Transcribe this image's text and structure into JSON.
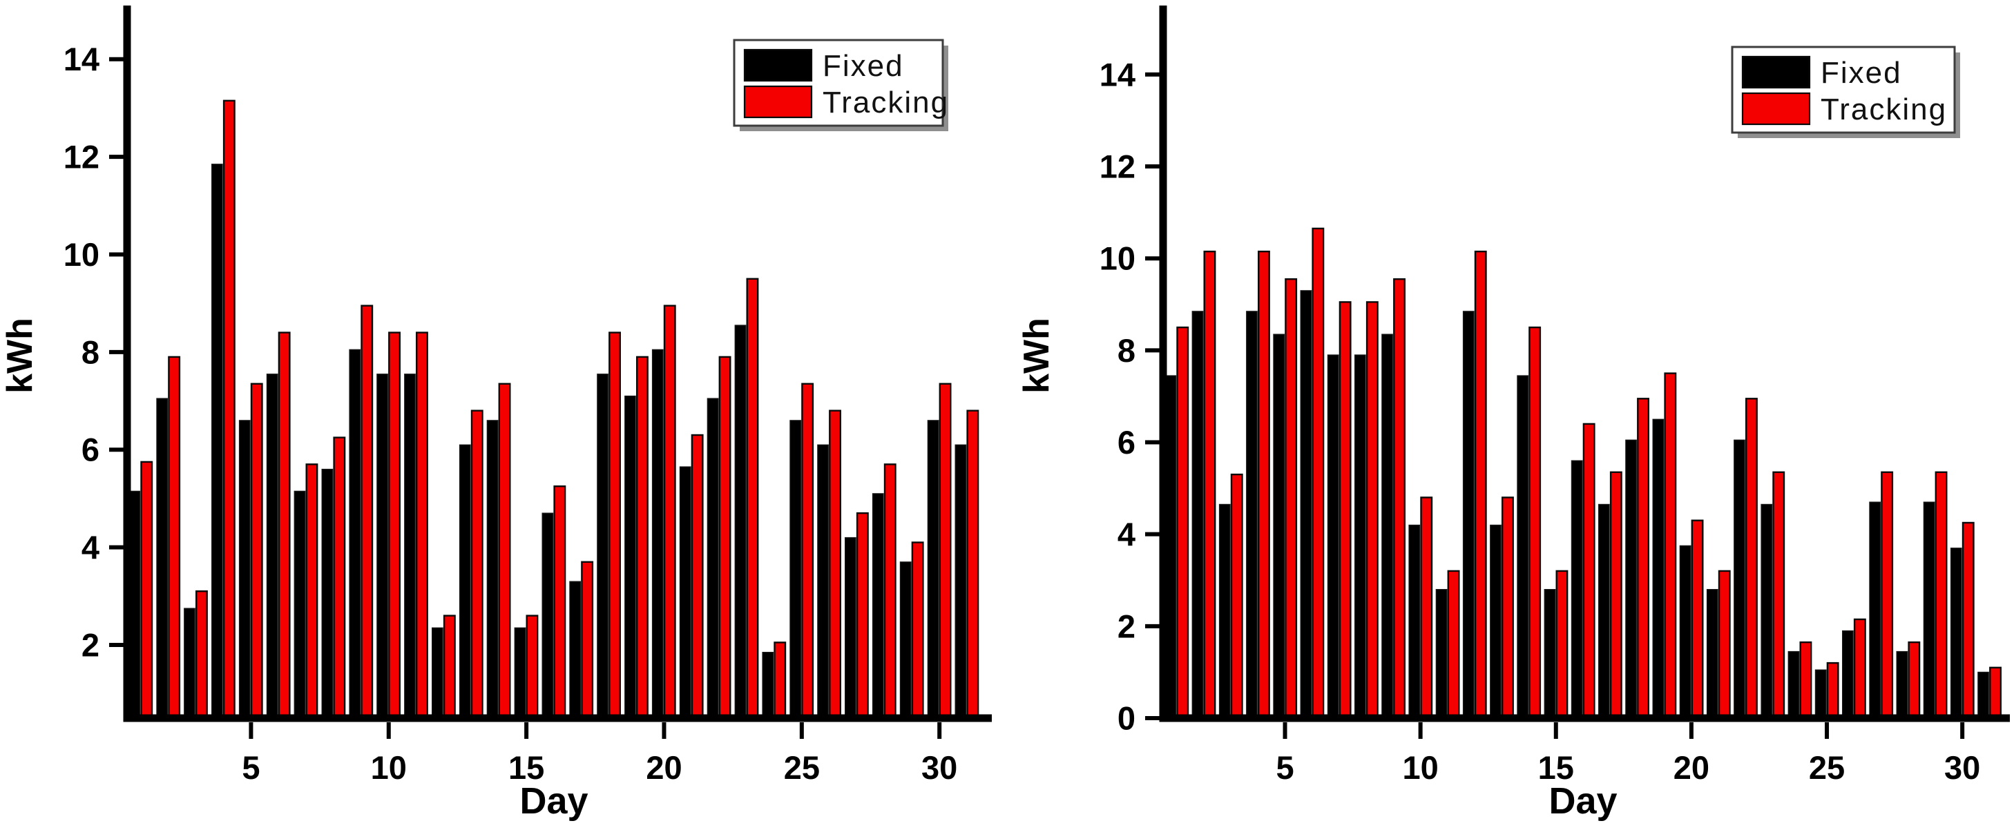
{
  "page": {
    "background": "#ffffff",
    "description": "Two grouped bar charts of daily solar energy yield, fixed vs tracking panels"
  },
  "legend": {
    "items": [
      {
        "label": "Fixed",
        "color": "#000000"
      },
      {
        "label": "Tracking",
        "color": "#f40000"
      }
    ]
  },
  "chart_data": [
    {
      "id": "left-chart",
      "type": "bar",
      "title": "",
      "xlabel": "Day",
      "ylabel": "kWh",
      "categories": [
        1,
        2,
        3,
        4,
        5,
        6,
        7,
        8,
        9,
        10,
        11,
        12,
        13,
        14,
        15,
        16,
        17,
        18,
        19,
        20,
        21,
        22,
        23,
        24,
        25,
        26,
        27,
        28,
        29,
        30,
        31
      ],
      "x_tick_labels": [
        5,
        10,
        15,
        20,
        25,
        30
      ],
      "y_tick_labels": [
        2,
        4,
        6,
        8,
        10,
        12,
        14
      ],
      "ylim": [
        0.5,
        15.1
      ],
      "grid": false,
      "legend_position": "top-right",
      "series": [
        {
          "name": "Fixed",
          "color": "#000000",
          "values": [
            5.15,
            7.05,
            2.75,
            11.85,
            6.6,
            7.55,
            5.15,
            5.6,
            8.05,
            7.55,
            7.55,
            2.35,
            6.1,
            6.6,
            2.35,
            4.7,
            3.3,
            7.55,
            7.1,
            8.05,
            5.65,
            7.05,
            8.55,
            1.85,
            6.6,
            6.1,
            4.2,
            5.1,
            3.7,
            6.6,
            6.1
          ]
        },
        {
          "name": "Tracking",
          "color": "#f40000",
          "values": [
            5.75,
            7.9,
            3.1,
            13.15,
            7.35,
            8.4,
            5.7,
            6.25,
            8.95,
            8.4,
            8.4,
            2.6,
            6.8,
            7.35,
            2.6,
            5.25,
            3.7,
            8.4,
            7.9,
            8.95,
            6.3,
            7.9,
            9.5,
            2.05,
            7.35,
            6.8,
            4.7,
            5.7,
            4.1,
            7.35,
            6.8
          ]
        }
      ]
    },
    {
      "id": "right-chart",
      "type": "bar",
      "title": "",
      "xlabel": "Day",
      "ylabel": "kWh",
      "categories": [
        1,
        2,
        3,
        4,
        5,
        6,
        7,
        8,
        9,
        10,
        11,
        12,
        13,
        14,
        15,
        16,
        17,
        18,
        19,
        20,
        21,
        22,
        23,
        24,
        25,
        26,
        27,
        28,
        29,
        30,
        31
      ],
      "x_tick_labels": [
        5,
        10,
        15,
        20,
        25,
        30
      ],
      "y_tick_labels": [
        0,
        2,
        4,
        6,
        8,
        10,
        12,
        14
      ],
      "ylim": [
        0,
        15.5
      ],
      "grid": false,
      "legend_position": "top-right",
      "series": [
        {
          "name": "Fixed",
          "color": "#000000",
          "values": [
            7.45,
            8.85,
            4.65,
            8.85,
            8.35,
            9.3,
            7.9,
            7.9,
            8.35,
            4.2,
            2.8,
            8.85,
            4.2,
            7.45,
            2.8,
            5.6,
            4.65,
            6.05,
            6.5,
            3.75,
            2.8,
            6.05,
            4.65,
            1.45,
            1.05,
            1.9,
            4.7,
            1.45,
            4.7,
            3.7,
            1.0
          ]
        },
        {
          "name": "Tracking",
          "color": "#f40000",
          "values": [
            8.5,
            10.15,
            5.3,
            10.15,
            9.55,
            10.65,
            9.05,
            9.05,
            9.55,
            4.8,
            3.2,
            10.15,
            4.8,
            8.5,
            3.2,
            6.4,
            5.35,
            6.95,
            7.5,
            4.3,
            3.2,
            6.95,
            5.35,
            1.65,
            1.2,
            2.15,
            5.35,
            1.65,
            5.35,
            4.25,
            1.1
          ]
        }
      ]
    }
  ]
}
